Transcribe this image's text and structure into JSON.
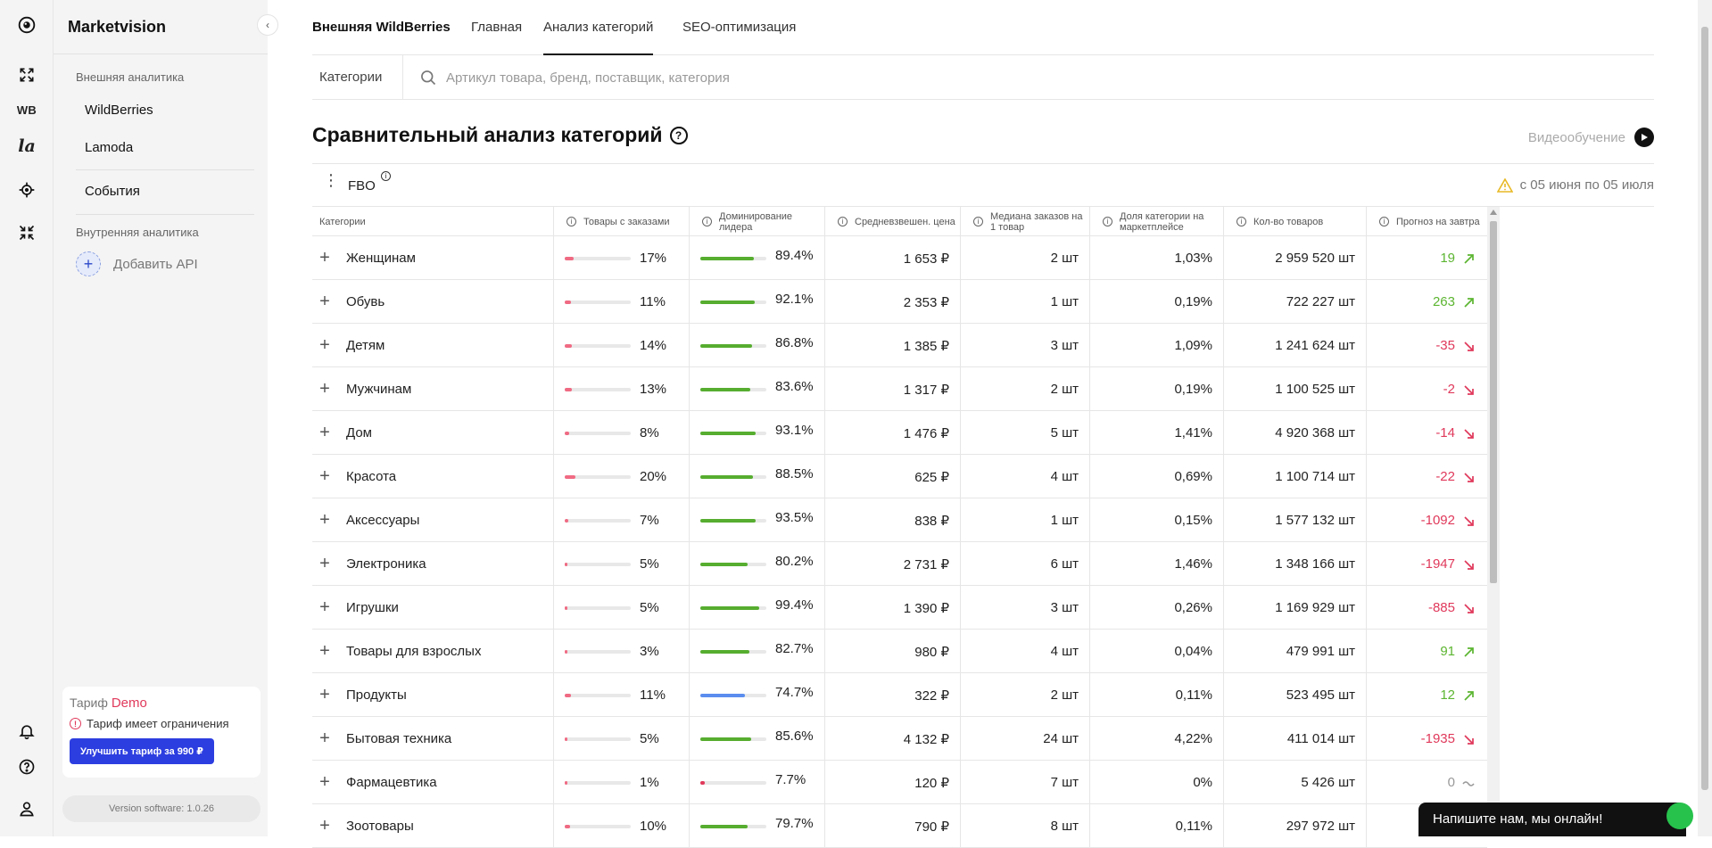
{
  "app": {
    "title": "Marketvision"
  },
  "sidebar": {
    "external_section": "Внешняя аналитика",
    "external_items": [
      {
        "label": "WildBerries"
      },
      {
        "label": "Lamoda"
      }
    ],
    "events": "События",
    "internal_section": "Внутренняя аналитика",
    "add_api": "Добавить API"
  },
  "rail": {
    "wb": "WB",
    "la": "la"
  },
  "tariff": {
    "label": "Тариф",
    "plan": "Demo",
    "limit_text": "Тариф имеет ограничения",
    "upgrade": "Улучшить тариф за 990 ₽"
  },
  "version": "Version software: 1.0.26",
  "tabs": [
    {
      "label": "Внешняя WildBerries"
    },
    {
      "label": "Главная"
    },
    {
      "label": "Анализ категорий"
    },
    {
      "label": "SEO-оптимизация"
    }
  ],
  "search": {
    "category_label": "Категории",
    "placeholder": "Артикул товара, бренд, поставщик, категория",
    "value": ""
  },
  "page": {
    "title": "Сравнительный анализ категорий",
    "video": "Видеообучение",
    "fbo": "FBO",
    "period": "с 05 июня по 05 июля"
  },
  "table": {
    "headers": [
      "Категории",
      "Товары с заказами",
      "Доминирование лидера",
      "Средневзвешен. цена",
      "Медиана заказов на 1 товар",
      "Доля категории на маркетплейсе",
      "Кол-во товаров",
      "Прогноз на завтра"
    ],
    "rows": [
      {
        "name": "Женщинам",
        "orders_pct": "17%",
        "orders_val": 0.17,
        "dom_pct": "89.4%",
        "dom_val": 0.894,
        "dom_color": "green",
        "price": "1 653 ₽",
        "median": "2 шт",
        "share": "1,03%",
        "count": "2 959 520 шт",
        "forecast": "19",
        "trend": "up"
      },
      {
        "name": "Обувь",
        "orders_pct": "11%",
        "orders_val": 0.11,
        "dom_pct": "92.1%",
        "dom_val": 0.921,
        "dom_color": "green",
        "price": "2 353 ₽",
        "median": "1 шт",
        "share": "0,19%",
        "count": "722 227 шт",
        "forecast": "263",
        "trend": "up"
      },
      {
        "name": "Детям",
        "orders_pct": "14%",
        "orders_val": 0.14,
        "dom_pct": "86.8%",
        "dom_val": 0.868,
        "dom_color": "green",
        "price": "1 385 ₽",
        "median": "3 шт",
        "share": "1,09%",
        "count": "1 241 624 шт",
        "forecast": "-35",
        "trend": "down"
      },
      {
        "name": "Мужчинам",
        "orders_pct": "13%",
        "orders_val": 0.13,
        "dom_pct": "83.6%",
        "dom_val": 0.836,
        "dom_color": "green",
        "price": "1 317 ₽",
        "median": "2 шт",
        "share": "0,19%",
        "count": "1 100 525 шт",
        "forecast": "-2",
        "trend": "down"
      },
      {
        "name": "Дом",
        "orders_pct": "8%",
        "orders_val": 0.08,
        "dom_pct": "93.1%",
        "dom_val": 0.931,
        "dom_color": "green",
        "price": "1 476 ₽",
        "median": "5 шт",
        "share": "1,41%",
        "count": "4 920 368 шт",
        "forecast": "-14",
        "trend": "down"
      },
      {
        "name": "Красота",
        "orders_pct": "20%",
        "orders_val": 0.2,
        "dom_pct": "88.5%",
        "dom_val": 0.885,
        "dom_color": "green",
        "price": "625 ₽",
        "median": "4 шт",
        "share": "0,69%",
        "count": "1 100 714 шт",
        "forecast": "-22",
        "trend": "down"
      },
      {
        "name": "Аксессуары",
        "orders_pct": "7%",
        "orders_val": 0.07,
        "dom_pct": "93.5%",
        "dom_val": 0.935,
        "dom_color": "green",
        "price": "838 ₽",
        "median": "1 шт",
        "share": "0,15%",
        "count": "1 577 132 шт",
        "forecast": "-1092",
        "trend": "down"
      },
      {
        "name": "Электроника",
        "orders_pct": "5%",
        "orders_val": 0.05,
        "dom_pct": "80.2%",
        "dom_val": 0.802,
        "dom_color": "green",
        "price": "2 731 ₽",
        "median": "6 шт",
        "share": "1,46%",
        "count": "1 348 166 шт",
        "forecast": "-1947",
        "trend": "down"
      },
      {
        "name": "Игрушки",
        "orders_pct": "5%",
        "orders_val": 0.05,
        "dom_pct": "99.4%",
        "dom_val": 0.994,
        "dom_color": "green",
        "price": "1 390 ₽",
        "median": "3 шт",
        "share": "0,26%",
        "count": "1 169 929 шт",
        "forecast": "-885",
        "trend": "down"
      },
      {
        "name": "Товары для взрослых",
        "orders_pct": "3%",
        "orders_val": 0.03,
        "dom_pct": "82.7%",
        "dom_val": 0.827,
        "dom_color": "green",
        "price": "980 ₽",
        "median": "4 шт",
        "share": "0,04%",
        "count": "479 991 шт",
        "forecast": "91",
        "trend": "up"
      },
      {
        "name": "Продукты",
        "orders_pct": "11%",
        "orders_val": 0.11,
        "dom_pct": "74.7%",
        "dom_val": 0.747,
        "dom_color": "blue",
        "price": "322 ₽",
        "median": "2 шт",
        "share": "0,11%",
        "count": "523 495 шт",
        "forecast": "12",
        "trend": "up"
      },
      {
        "name": "Бытовая техника",
        "orders_pct": "5%",
        "orders_val": 0.05,
        "dom_pct": "85.6%",
        "dom_val": 0.856,
        "dom_color": "green",
        "price": "4 132 ₽",
        "median": "24 шт",
        "share": "4,22%",
        "count": "411 014 шт",
        "forecast": "-1935",
        "trend": "down"
      },
      {
        "name": "Фармацевтика",
        "orders_pct": "1%",
        "orders_val": 0.01,
        "dom_pct": "7.7%",
        "dom_val": 0.077,
        "dom_color": "red",
        "price": "120 ₽",
        "median": "7 шт",
        "share": "0%",
        "count": "5 426 шт",
        "forecast": "0",
        "trend": "flat"
      },
      {
        "name": "Зоотовары",
        "orders_pct": "10%",
        "orders_val": 0.1,
        "dom_pct": "79.7%",
        "dom_val": 0.797,
        "dom_color": "green",
        "price": "790 ₽",
        "median": "8 шт",
        "share": "0,11%",
        "count": "297 972 шт",
        "forecast": "",
        "trend": "none"
      }
    ]
  },
  "chat": {
    "text": "Напишите нам, мы онлайн!"
  },
  "colors": {
    "accent": "#2d3ee0",
    "up": "#5cb531",
    "down": "#e0395b",
    "flat": "#999999",
    "orders_bar": "#f06a83",
    "dom_green": "#56ad2f",
    "dom_blue": "#5b8def",
    "dom_red": "#e0395b"
  },
  "icons": [
    "logo-icon",
    "expand-icon",
    "target-icon",
    "collapse-icon",
    "bell-icon",
    "help-icon",
    "user-icon",
    "search-icon",
    "play-icon",
    "warning-icon",
    "info-icon",
    "plus-icon",
    "trend-up-icon",
    "trend-down-icon",
    "trend-flat-icon"
  ]
}
